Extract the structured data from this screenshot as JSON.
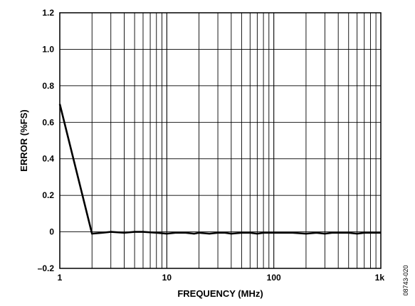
{
  "chart_data": {
    "type": "line",
    "title": "",
    "xlabel": "FREQUENCY (MHz)",
    "ylabel": "ERROR (%FS)",
    "x_scale": "log",
    "xlim": [
      1,
      1000
    ],
    "ylim": [
      -0.2,
      1.2
    ],
    "grid": true,
    "x_ticks": [
      {
        "value": 1,
        "label": "1"
      },
      {
        "value": 10,
        "label": "10"
      },
      {
        "value": 100,
        "label": "100"
      },
      {
        "value": 1000,
        "label": "1k"
      }
    ],
    "y_ticks": [
      {
        "value": 1.2,
        "label": "1.2"
      },
      {
        "value": 1.0,
        "label": "1.0"
      },
      {
        "value": 0.8,
        "label": "0.8"
      },
      {
        "value": 0.6,
        "label": "0.6"
      },
      {
        "value": 0.4,
        "label": "0.4"
      },
      {
        "value": 0.2,
        "label": "0.2"
      },
      {
        "value": 0,
        "label": "0"
      },
      {
        "value": -0.2,
        "label": "–0.2"
      }
    ],
    "series": [
      {
        "color": "#000000",
        "x": [
          1,
          2,
          2.5,
          3,
          4,
          5,
          6,
          8,
          10,
          12,
          15,
          18,
          20,
          25,
          30,
          35,
          40,
          50,
          60,
          70,
          80,
          100,
          120,
          150,
          200,
          250,
          300,
          350,
          400,
          500,
          600,
          700,
          800,
          900,
          1000
        ],
        "y": [
          0.7,
          -0.01,
          -0.005,
          0.0,
          -0.005,
          0.0,
          0.0,
          -0.005,
          -0.01,
          -0.005,
          -0.005,
          -0.01,
          -0.005,
          -0.01,
          -0.005,
          -0.005,
          -0.01,
          -0.005,
          -0.005,
          -0.01,
          -0.005,
          -0.005,
          -0.005,
          -0.005,
          -0.01,
          -0.005,
          -0.01,
          -0.005,
          -0.005,
          -0.005,
          -0.01,
          -0.005,
          -0.005,
          -0.005,
          -0.005
        ]
      }
    ]
  },
  "figure_id": "08743-020"
}
